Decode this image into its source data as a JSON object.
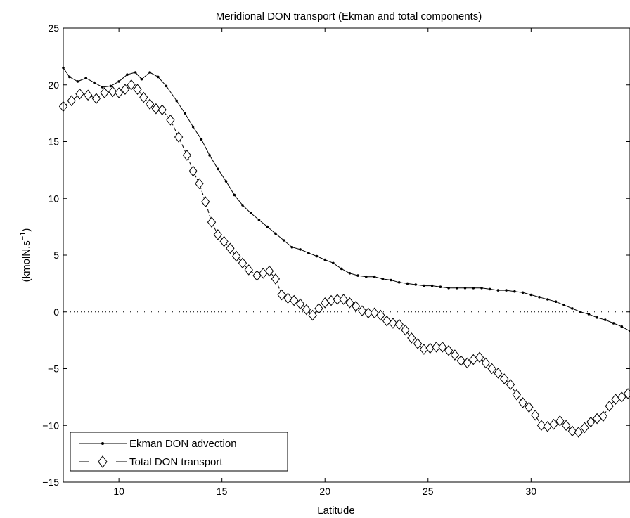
{
  "chart_data": {
    "type": "line",
    "title": "Meridional DON transport (Ekman and total components)",
    "xlabel": "Latitude",
    "ylabel": "(kmolN.s",
    "ylabel_sup": "−1",
    "ylabel_close": ")",
    "xlim": [
      7.3,
      34.8
    ],
    "ylim": [
      -15,
      25
    ],
    "xticks": [
      10,
      15,
      20,
      25,
      30
    ],
    "yticks": [
      -15,
      -10,
      -5,
      0,
      5,
      10,
      15,
      20,
      25
    ],
    "xtick_labels": [
      "10",
      "15",
      "20",
      "25",
      "30"
    ],
    "ytick_labels": [
      "−15",
      "−10",
      "−5",
      "0",
      "5",
      "10",
      "15",
      "20",
      "25"
    ],
    "zero_line": "dotted",
    "grid": false,
    "legend_position": "bottom-left",
    "series": [
      {
        "name": "Ekman DON advection",
        "style": "solid line with dot markers",
        "x": [
          7.3,
          7.6,
          8.0,
          8.4,
          8.8,
          9.2,
          9.6,
          10.0,
          10.4,
          10.8,
          11.1,
          11.5,
          11.9,
          12.3,
          12.8,
          13.2,
          13.6,
          14.0,
          14.4,
          14.8,
          15.2,
          15.6,
          16.0,
          16.4,
          16.8,
          17.2,
          17.6,
          18.0,
          18.4,
          18.8,
          19.2,
          19.6,
          20.0,
          20.4,
          20.8,
          21.2,
          21.6,
          22.0,
          22.4,
          22.8,
          23.2,
          23.6,
          24.0,
          24.4,
          24.8,
          25.2,
          25.6,
          26.0,
          26.4,
          26.8,
          27.2,
          27.6,
          28.0,
          28.4,
          28.8,
          29.2,
          29.6,
          30.0,
          30.4,
          30.8,
          31.2,
          31.6,
          32.0,
          32.4,
          32.8,
          33.2,
          33.6,
          34.0,
          34.4,
          34.8
        ],
        "y": [
          21.5,
          20.7,
          20.3,
          20.6,
          20.2,
          19.8,
          19.9,
          20.3,
          20.9,
          21.1,
          20.5,
          21.1,
          20.7,
          19.9,
          18.6,
          17.5,
          16.3,
          15.2,
          13.8,
          12.6,
          11.5,
          10.3,
          9.4,
          8.7,
          8.1,
          7.5,
          6.9,
          6.3,
          5.7,
          5.5,
          5.2,
          4.9,
          4.6,
          4.3,
          3.8,
          3.4,
          3.2,
          3.1,
          3.1,
          2.9,
          2.8,
          2.6,
          2.5,
          2.4,
          2.3,
          2.3,
          2.2,
          2.1,
          2.1,
          2.1,
          2.1,
          2.1,
          2.0,
          1.9,
          1.9,
          1.8,
          1.7,
          1.5,
          1.3,
          1.1,
          0.9,
          0.6,
          0.3,
          0.0,
          -0.2,
          -0.5,
          -0.7,
          -1.0,
          -1.3,
          -1.7
        ]
      },
      {
        "name": "Total DON transport",
        "style": "dashed line with diamond markers",
        "x": [
          7.3,
          7.7,
          8.1,
          8.5,
          8.9,
          9.3,
          9.7,
          10.0,
          10.3,
          10.6,
          10.9,
          11.2,
          11.5,
          11.8,
          12.1,
          12.5,
          12.9,
          13.3,
          13.6,
          13.9,
          14.2,
          14.5,
          14.8,
          15.1,
          15.4,
          15.7,
          16.0,
          16.3,
          16.7,
          17.0,
          17.3,
          17.6,
          17.9,
          18.2,
          18.5,
          18.8,
          19.1,
          19.4,
          19.7,
          20.0,
          20.3,
          20.6,
          20.9,
          21.2,
          21.5,
          21.8,
          22.1,
          22.4,
          22.7,
          23.0,
          23.3,
          23.6,
          23.9,
          24.2,
          24.5,
          24.8,
          25.1,
          25.4,
          25.7,
          26.0,
          26.3,
          26.6,
          26.9,
          27.2,
          27.5,
          27.8,
          28.1,
          28.4,
          28.7,
          29.0,
          29.3,
          29.6,
          29.9,
          30.2,
          30.5,
          30.8,
          31.1,
          31.4,
          31.7,
          32.0,
          32.3,
          32.6,
          32.9,
          33.2,
          33.5,
          33.8,
          34.1,
          34.4,
          34.7
        ],
        "y": [
          18.1,
          18.6,
          19.2,
          19.1,
          18.8,
          19.3,
          19.4,
          19.3,
          19.6,
          20.0,
          19.6,
          18.9,
          18.3,
          17.9,
          17.8,
          16.9,
          15.4,
          13.8,
          12.4,
          11.3,
          9.7,
          7.9,
          6.8,
          6.2,
          5.6,
          4.9,
          4.3,
          3.7,
          3.2,
          3.4,
          3.6,
          2.9,
          1.5,
          1.2,
          1.0,
          0.7,
          0.2,
          -0.3,
          0.3,
          0.8,
          1.0,
          1.1,
          1.1,
          0.8,
          0.5,
          0.1,
          -0.1,
          -0.1,
          -0.3,
          -0.8,
          -1.0,
          -1.1,
          -1.6,
          -2.3,
          -2.8,
          -3.3,
          -3.2,
          -3.1,
          -3.1,
          -3.4,
          -3.8,
          -4.3,
          -4.5,
          -4.2,
          -4.0,
          -4.5,
          -5.0,
          -5.4,
          -5.9,
          -6.4,
          -7.3,
          -8.0,
          -8.4,
          -9.1,
          -10.0,
          -10.1,
          -9.9,
          -9.6,
          -10.0,
          -10.5,
          -10.6,
          -10.2,
          -9.7,
          -9.4,
          -9.2,
          -8.3,
          -7.7,
          -7.5,
          -7.2
        ]
      }
    ]
  }
}
